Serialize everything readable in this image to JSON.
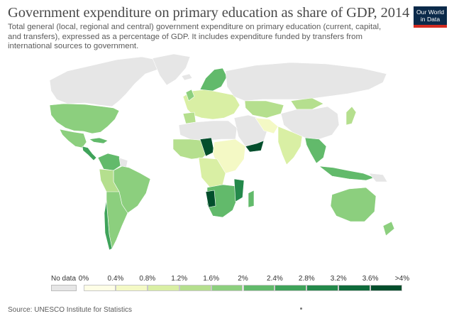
{
  "title": "Government expenditure on primary education as share of GDP, 2014",
  "subtitle": "Total general (local, regional and central) government expenditure on primary education (current, capital, and transfers), expressed as a percentage of GDP. It includes expenditure funded by transfers from international sources to government.",
  "logo": {
    "line1": "Our World",
    "line2": "in Data"
  },
  "legend": {
    "no_data_label": "No data",
    "no_data_color": "#e6e6e6",
    "ticks": [
      "0%",
      "0.4%",
      "0.8%",
      "1.2%",
      "1.6%",
      "2%",
      "2.4%",
      "2.8%",
      "3.2%",
      "3.6%",
      ">4%"
    ],
    "bins": [
      {
        "range": "0%–0.4%",
        "color": "#fefee6"
      },
      {
        "range": "0.4%–0.8%",
        "color": "#f4f9c5"
      },
      {
        "range": "0.8%–1.2%",
        "color": "#d9efa4"
      },
      {
        "range": "1.2%–1.6%",
        "color": "#b5df8e"
      },
      {
        "range": "1.6%–2%",
        "color": "#8ccf7e"
      },
      {
        "range": "2%–2.4%",
        "color": "#62ba6b"
      },
      {
        "range": "2.4%–2.8%",
        "color": "#3fa35a"
      },
      {
        "range": "2.8%–3.2%",
        "color": "#24894b"
      },
      {
        "range": "3.2%–3.6%",
        "color": "#0f6b3b"
      },
      {
        "range": "3.6%–>4%",
        "color": "#024e2c"
      }
    ]
  },
  "source": "Source: UNESCO Institute for Statistics"
}
